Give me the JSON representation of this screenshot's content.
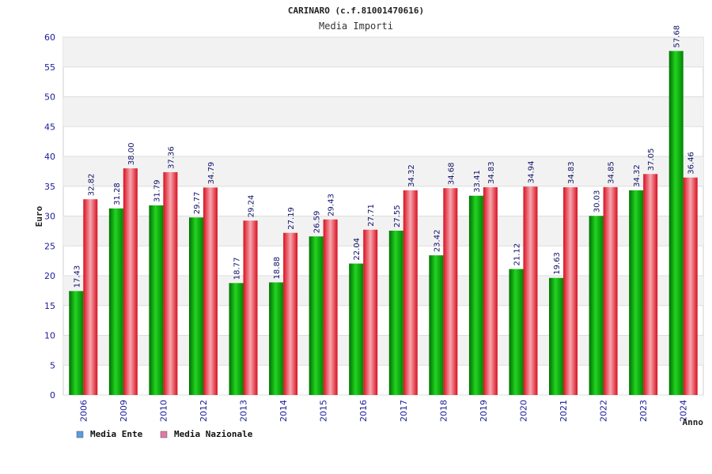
{
  "chart_data": {
    "type": "bar",
    "title": "CARINARO (c.f.81001470616)",
    "subtitle": "Media Importi",
    "xlabel": "Anno",
    "ylabel": "Euro",
    "ylim": [
      0,
      60
    ],
    "yticks": [
      0,
      5,
      10,
      15,
      20,
      25,
      30,
      35,
      40,
      45,
      50,
      55,
      60
    ],
    "grid": true,
    "legend_position": "bottom-left",
    "categories": [
      "2006",
      "2009",
      "2010",
      "2012",
      "2013",
      "2014",
      "2015",
      "2016",
      "2017",
      "2018",
      "2019",
      "2020",
      "2021",
      "2022",
      "2023",
      "2024"
    ],
    "series": [
      {
        "name": "Media Ente",
        "color": "#00a000",
        "legend_color": "#5b9be0",
        "values": [
          17.43,
          31.28,
          31.79,
          29.77,
          18.77,
          18.88,
          26.59,
          22.04,
          27.55,
          23.42,
          33.41,
          21.12,
          19.63,
          30.03,
          34.32,
          57.68
        ],
        "labels": [
          "17.43",
          "31.28",
          "31.79",
          "29.77",
          "18.77",
          "18.88",
          "26.59",
          "22.04",
          "27.55",
          "23.42",
          "33.41",
          "21.12",
          "19.63",
          "30.03",
          "34.32",
          "57.68"
        ]
      },
      {
        "name": "Media Nazionale",
        "color": "#e8202a",
        "legend_color": "#e07aa6",
        "values": [
          32.82,
          38.0,
          37.36,
          34.79,
          29.24,
          27.19,
          29.43,
          27.71,
          34.32,
          34.68,
          34.83,
          34.94,
          34.83,
          34.85,
          37.05,
          36.46
        ],
        "labels": [
          "32.82",
          "38.00",
          "37.36",
          "34.79",
          "29.24",
          "27.19",
          "29.43",
          "27.71",
          "34.32",
          "34.68",
          "34.83",
          "34.94",
          "34.83",
          "34.85",
          "37.05",
          "36.46"
        ]
      }
    ]
  }
}
